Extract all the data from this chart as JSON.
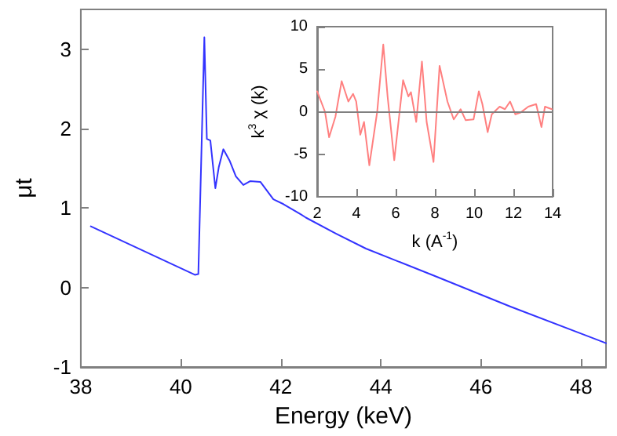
{
  "chart_data": [
    {
      "type": "line",
      "xlabel": "Energy (keV)",
      "ylabel": "μt",
      "xlim": [
        38,
        48.5
      ],
      "ylim": [
        -1,
        3.5
      ],
      "xticks": [
        38,
        40,
        42,
        44,
        46,
        48
      ],
      "yticks": [
        -1,
        0,
        1,
        2,
        3
      ],
      "grid": false,
      "marker": "none",
      "line_style": "solid",
      "series": [
        {
          "color": "#3333ff",
          "x": [
            38.2,
            40.28,
            40.35,
            40.47,
            40.52,
            40.59,
            40.69,
            40.76,
            40.85,
            40.98,
            41.1,
            41.25,
            41.39,
            41.59,
            41.85,
            42.05,
            42.4,
            42.5,
            43.1,
            43.7,
            45.06,
            46.59,
            48,
            48.5
          ],
          "values": [
            0.77,
            0.16,
            0.17,
            3.15,
            1.87,
            1.85,
            1.25,
            1.52,
            1.74,
            1.59,
            1.4,
            1.29,
            1.34,
            1.33,
            1.11,
            1.05,
            0.92,
            0.88,
            0.68,
            0.49,
            0.15,
            -0.24,
            -0.58,
            -0.7
          ]
        }
      ]
    },
    {
      "type": "line",
      "xlabel": "k (A$^{-1}$)",
      "ylabel": "k$^{3}$ χ (k)",
      "xlim": [
        2,
        14
      ],
      "ylim": [
        -10,
        10
      ],
      "xticks": [
        2,
        4,
        6,
        8,
        10,
        12,
        14
      ],
      "yticks": [
        -10,
        -5,
        0,
        5,
        10
      ],
      "grid": false,
      "marker": "none",
      "line_style": "solid",
      "ref_lines": [
        {
          "axis": "y",
          "value": 0,
          "color": "#808080"
        }
      ],
      "series": [
        {
          "color": "#ff8080",
          "x": [
            2,
            2.4,
            2.61,
            2.93,
            3.25,
            3.59,
            3.83,
            3.99,
            4.2,
            4.39,
            4.66,
            5.06,
            5.37,
            5.59,
            5.93,
            6.38,
            6.65,
            6.78,
            7.05,
            7.34,
            7.58,
            7.93,
            8.24,
            8.64,
            8.96,
            9.31,
            9.57,
            9.97,
            10.24,
            10.42,
            10.69,
            10.9,
            11.3,
            11.57,
            11.83,
            12.1,
            12.36,
            12.76,
            13.16,
            13.43,
            13.61,
            13.96
          ],
          "values": [
            2.4,
            0,
            -3,
            -0.6,
            3.6,
            1.2,
            2.1,
            1.2,
            -2.7,
            -1.2,
            -6.3,
            0,
            7.9,
            1.8,
            -5.7,
            3.7,
            1.8,
            2.3,
            -1.2,
            5.9,
            -1.2,
            -5.9,
            5.4,
            1.2,
            -0.9,
            0.3,
            -1,
            -0.9,
            2.4,
            0.9,
            -2.4,
            -0.3,
            0.6,
            0.3,
            1.2,
            -0.3,
            -0.1,
            0.6,
            0.9,
            -1.8,
            0.6,
            0.3
          ]
        }
      ]
    }
  ]
}
